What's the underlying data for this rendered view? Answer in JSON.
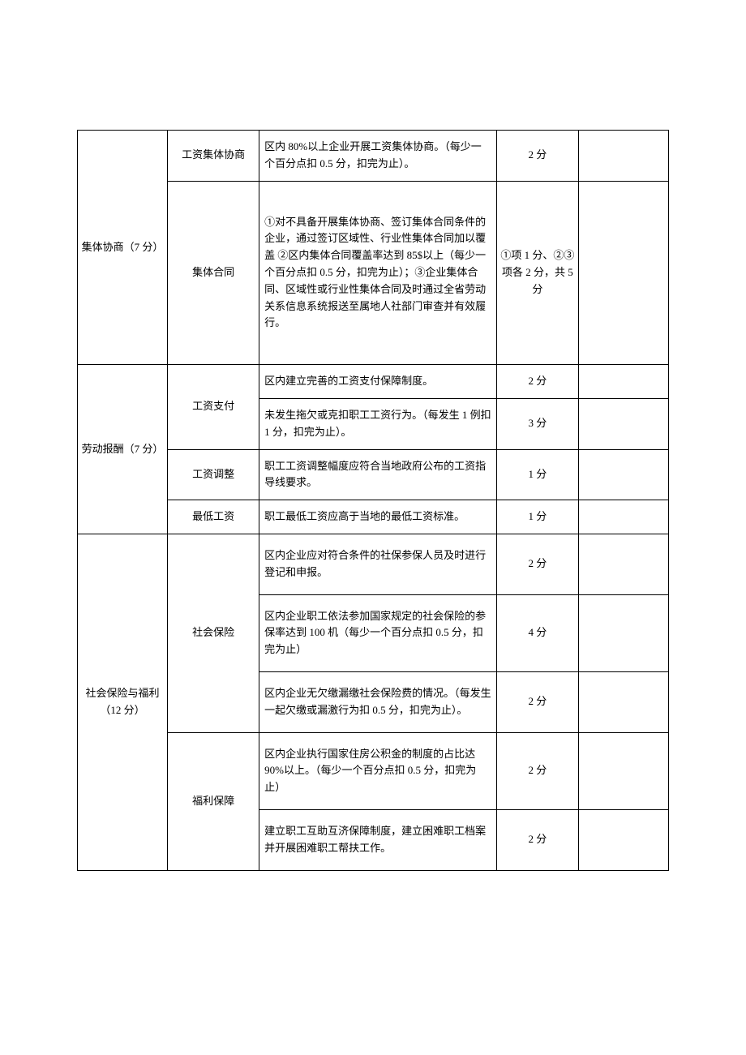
{
  "categories": [
    {
      "name": "集体协商（7 分）",
      "items": [
        {
          "name": "工资集体协商",
          "rows": [
            {
              "desc": "区内 80%以上企业开展工资集体协商。（每少一个百分点扣 0.5 分，扣完为止）。",
              "score": "2 分"
            }
          ]
        },
        {
          "name": "集体合同",
          "rows": [
            {
              "desc": "①对不具备开展集体协商、签订集体合同条件的企业，通过签订区域性、行业性集体合同加以覆盖 ②区内集体合同覆盖率达到 85$以上（每少一个百分点扣 0.5 分，扣完为止）；③企业集体合同、区域性或行业性集体合同及时通过全省劳动关系信息系统报送至属地人社部门审查并有效履行。",
              "score": "①项 1 分、②③项各 2 分，共 5 分"
            }
          ]
        }
      ]
    },
    {
      "name": "劳动报酬（7 分）",
      "items": [
        {
          "name": "工资支付",
          "rows": [
            {
              "desc": "区内建立完善的工资支付保障制度。",
              "score": "2 分"
            },
            {
              "desc": "未发生拖欠或克扣职工工资行为。（每发生 1 例扣 1 分，扣完为止）。",
              "score": "3 分"
            }
          ]
        },
        {
          "name": "工资调整",
          "rows": [
            {
              "desc": "职工工资调整幅度应符合当地政府公布的工资指导线要求。",
              "score": "1 分"
            }
          ]
        },
        {
          "name": "最低工资",
          "rows": [
            {
              "desc": "职工最低工资应高于当地的最低工资标准。",
              "score": "1 分"
            }
          ]
        }
      ]
    },
    {
      "name": "社会保险与福利（12 分）",
      "items": [
        {
          "name": "社会保险",
          "rows": [
            {
              "desc": "区内企业应对符合条件的社保参保人员及时进行登记和申报。",
              "score": "2 分"
            },
            {
              "desc": "区内企业职工依法参加国家规定的社会保险的参保率达到 100 机（每少一个百分点扣 0.5 分，扣完为止）",
              "score": "4 分"
            },
            {
              "desc": "区内企业无欠缴漏缴社会保险费的情况。（每发生一起欠缴或漏激行为扣 0.5 分，扣完为止）。",
              "score": "2 分"
            }
          ]
        },
        {
          "name": "福利保障",
          "rows": [
            {
              "desc": "区内企业执行国家住房公积金的制度的占比达 90%以上。（每少一个百分点扣 0.5 分，扣完为止）",
              "score": "2 分"
            },
            {
              "desc": "建立职工互助互济保障制度，建立困难职工档案并开展困难职工帮扶工作。",
              "score": "2 分"
            }
          ]
        }
      ]
    }
  ]
}
